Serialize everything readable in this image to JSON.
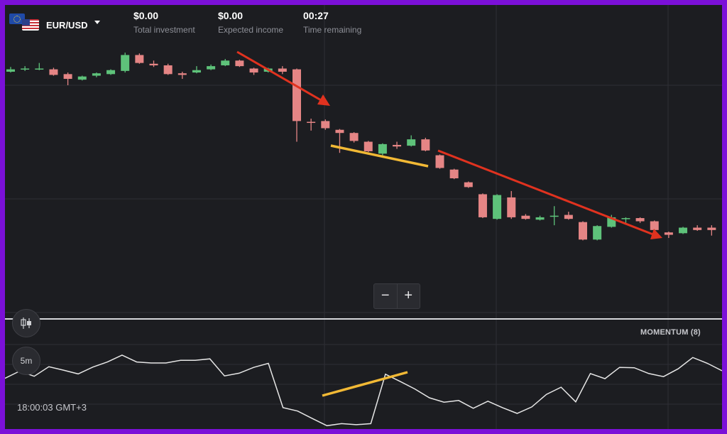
{
  "asset": {
    "pair": "EUR/USD",
    "flags": [
      "eu-flag-icon",
      "us-flag-icon"
    ]
  },
  "stats": [
    {
      "value": "$0.00",
      "label": "Total investment"
    },
    {
      "value": "$0.00",
      "label": "Expected income"
    },
    {
      "value": "00:27",
      "label": "Time remaining"
    }
  ],
  "zoom": {
    "minus": "−",
    "plus": "+"
  },
  "tools": {
    "chart_type_icon": "candlestick-icon",
    "timeframe": "5m"
  },
  "indicator": {
    "name": "MOMENTUM (8)"
  },
  "clock": "18:00:03 GMT+3",
  "colors": {
    "bull": "#5ec27a",
    "bear": "#e58585",
    "arrow": "#e0321f",
    "trendline": "#f2b935",
    "line": "#e6e6e6"
  },
  "candles": [
    {
      "o": 1.17,
      "c": 1.2,
      "h": 1.23,
      "l": 1.16
    },
    {
      "o": 1.2,
      "c": 1.21,
      "h": 1.24,
      "l": 1.18
    },
    {
      "o": 1.21,
      "c": 1.21,
      "h": 1.28,
      "l": 1.19
    },
    {
      "o": 1.2,
      "c": 1.13,
      "h": 1.22,
      "l": 1.12
    },
    {
      "o": 1.14,
      "c": 1.08,
      "h": 1.16,
      "l": 1.0
    },
    {
      "o": 1.07,
      "c": 1.11,
      "h": 1.12,
      "l": 1.06
    },
    {
      "o": 1.12,
      "c": 1.15,
      "h": 1.16,
      "l": 1.1
    },
    {
      "o": 1.14,
      "c": 1.19,
      "h": 1.2,
      "l": 1.13
    },
    {
      "o": 1.18,
      "c": 1.38,
      "h": 1.41,
      "l": 1.16
    },
    {
      "o": 1.38,
      "c": 1.28,
      "h": 1.4,
      "l": 1.27
    },
    {
      "o": 1.27,
      "c": 1.25,
      "h": 1.31,
      "l": 1.23
    },
    {
      "o": 1.25,
      "c": 1.14,
      "h": 1.27,
      "l": 1.13
    },
    {
      "o": 1.15,
      "c": 1.13,
      "h": 1.17,
      "l": 1.08
    },
    {
      "o": 1.16,
      "c": 1.19,
      "h": 1.24,
      "l": 1.15
    },
    {
      "o": 1.2,
      "c": 1.24,
      "h": 1.26,
      "l": 1.19
    },
    {
      "o": 1.25,
      "c": 1.31,
      "h": 1.33,
      "l": 1.24
    },
    {
      "o": 1.31,
      "c": 1.24,
      "h": 1.32,
      "l": 1.23
    },
    {
      "o": 1.21,
      "c": 1.16,
      "h": 1.22,
      "l": 1.13
    },
    {
      "o": 1.17,
      "c": 1.21,
      "h": 1.22,
      "l": 1.16
    },
    {
      "o": 1.21,
      "c": 1.17,
      "h": 1.24,
      "l": 1.14
    },
    {
      "o": 1.2,
      "c": 0.55,
      "h": 1.21,
      "l": 0.29
    },
    {
      "o": 0.54,
      "c": 0.53,
      "h": 0.58,
      "l": 0.43
    },
    {
      "o": 0.55,
      "c": 0.46,
      "h": 0.57,
      "l": 0.44
    },
    {
      "o": 0.44,
      "c": 0.4,
      "h": 0.45,
      "l": 0.15
    },
    {
      "o": 0.4,
      "c": 0.3,
      "h": 0.41,
      "l": 0.28
    },
    {
      "o": 0.29,
      "c": 0.17,
      "h": 0.3,
      "l": 0.16
    },
    {
      "o": 0.14,
      "c": 0.26,
      "h": 0.27,
      "l": 0.12
    },
    {
      "o": 0.25,
      "c": 0.23,
      "h": 0.29,
      "l": 0.2
    },
    {
      "o": 0.24,
      "c": 0.32,
      "h": 0.37,
      "l": 0.23
    },
    {
      "o": 0.32,
      "c": 0.18,
      "h": 0.34,
      "l": 0.17
    },
    {
      "o": 0.12,
      "c": -0.04,
      "h": 0.13,
      "l": -0.05
    },
    {
      "o": -0.06,
      "c": -0.17,
      "h": -0.05,
      "l": -0.18
    },
    {
      "o": -0.22,
      "c": -0.28,
      "h": -0.21,
      "l": -0.29
    },
    {
      "o": -0.37,
      "c": -0.66,
      "h": -0.36,
      "l": -0.67
    },
    {
      "o": -0.68,
      "c": -0.38,
      "h": -0.37,
      "l": -0.69
    },
    {
      "o": -0.41,
      "c": -0.66,
      "h": -0.33,
      "l": -0.68
    },
    {
      "o": -0.64,
      "c": -0.68,
      "h": -0.62,
      "l": -0.69
    },
    {
      "o": -0.69,
      "c": -0.66,
      "h": -0.64,
      "l": -0.7
    },
    {
      "o": -0.64,
      "c": -0.64,
      "h": -0.52,
      "l": -0.76
    },
    {
      "o": -0.63,
      "c": -0.68,
      "h": -0.59,
      "l": -0.69
    },
    {
      "o": -0.72,
      "c": -0.94,
      "h": -0.71,
      "l": -0.95
    },
    {
      "o": -0.94,
      "c": -0.77,
      "h": -0.76,
      "l": -0.95
    },
    {
      "o": -0.78,
      "c": -0.66,
      "h": -0.63,
      "l": -0.79
    },
    {
      "o": -0.67,
      "c": -0.67,
      "h": -0.66,
      "l": -0.74
    },
    {
      "o": -0.67,
      "c": -0.71,
      "h": -0.66,
      "l": -0.73
    },
    {
      "o": -0.71,
      "c": -0.82,
      "h": -0.7,
      "l": -0.83
    },
    {
      "o": -0.85,
      "c": -0.88,
      "h": -0.84,
      "l": -0.92
    },
    {
      "o": -0.86,
      "c": -0.79,
      "h": -0.78,
      "l": -0.87
    },
    {
      "o": -0.79,
      "c": -0.82,
      "h": -0.76,
      "l": -0.83
    },
    {
      "o": -0.79,
      "c": -0.82,
      "h": -0.76,
      "l": -0.89
    }
  ],
  "momentum": [
    0.3,
    0.51,
    0.36,
    0.64,
    0.54,
    0.43,
    0.63,
    0.78,
    0.98,
    0.78,
    0.75,
    0.75,
    0.83,
    0.83,
    0.87,
    0.37,
    0.45,
    0.62,
    0.74,
    -0.56,
    -0.66,
    -0.88,
    -1.09,
    -1.03,
    -1.06,
    -1.03,
    0.42,
    0.21,
    -0.01,
    -0.27,
    -0.4,
    -0.35,
    -0.58,
    -0.37,
    -0.56,
    -0.73,
    -0.54,
    -0.17,
    0.04,
    -0.39,
    0.44,
    0.29,
    0.62,
    0.61,
    0.44,
    0.35,
    0.58,
    0.91,
    0.74,
    0.52
  ]
}
